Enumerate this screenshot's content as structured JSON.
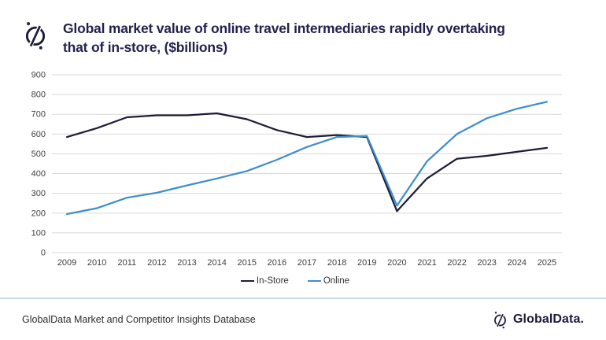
{
  "header": {
    "title_line1": "Global market value of online travel intermediaries rapidly overtaking",
    "title_line2": "that of in-store, ($billions)"
  },
  "chart_data": {
    "type": "line",
    "title": "Global market value of online travel intermediaries rapidly overtaking that of in-store, ($billions)",
    "categories": [
      "2009",
      "2010",
      "2011",
      "2012",
      "2013",
      "2014",
      "2015",
      "2016",
      "2017",
      "2018",
      "2019",
      "2020",
      "2021",
      "2022",
      "2023",
      "2024",
      "2025"
    ],
    "series": [
      {
        "name": "In-Store",
        "color": "#1d1d38",
        "values": [
          585,
          630,
          685,
          695,
          695,
          705,
          675,
          620,
          585,
          595,
          585,
          210,
          375,
          475,
          490,
          510,
          530
        ]
      },
      {
        "name": "Online",
        "color": "#3f8fca",
        "values": [
          195,
          225,
          278,
          303,
          340,
          375,
          413,
          470,
          535,
          585,
          590,
          238,
          462,
          600,
          680,
          728,
          763
        ]
      }
    ],
    "ylim": [
      0,
      900
    ],
    "ytick_step": 100,
    "grid": "horizontal",
    "legend_position": "bottom-center"
  },
  "footer": {
    "source_text": "GlobalData Market and Competitor Insights Database",
    "brand_text": "GlobalData."
  },
  "colors": {
    "title": "#23224e",
    "axis_text": "#404040",
    "gridline": "#d9d9d9",
    "separator": "#ccd7e4",
    "footer_text": "#2d2d2d",
    "brand": "#1c1b3b"
  }
}
